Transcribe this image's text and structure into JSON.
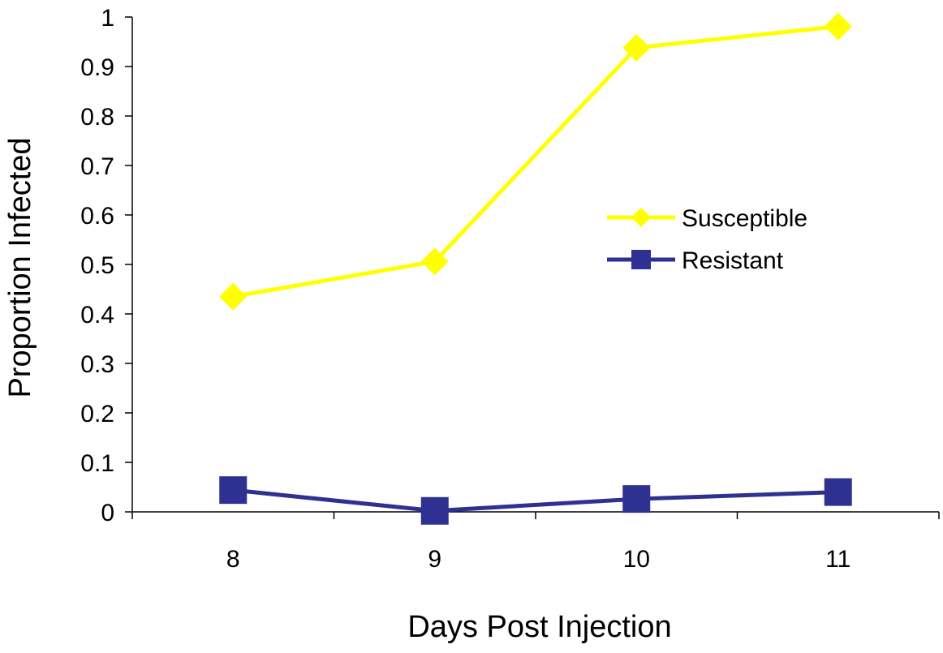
{
  "chart_data": {
    "type": "line",
    "title": "",
    "xlabel": "Days Post Injection",
    "ylabel": "Proportion Infected",
    "categories": [
      "8",
      "9",
      "10",
      "11"
    ],
    "ylim": [
      0,
      1
    ],
    "y_ticks": [
      "0",
      "0.1",
      "0.2",
      "0.3",
      "0.4",
      "0.5",
      "0.6",
      "0.7",
      "0.8",
      "0.9",
      "1"
    ],
    "grid": false,
    "legend_position": "right",
    "series": [
      {
        "name": "Susceptible",
        "values": [
          0.435,
          0.506,
          0.938,
          0.981
        ],
        "color": "#ffff00",
        "marker": "diamond"
      },
      {
        "name": "Resistant",
        "values": [
          0.044,
          0.002,
          0.026,
          0.04
        ],
        "color": "#2e3192",
        "marker": "square"
      }
    ]
  }
}
